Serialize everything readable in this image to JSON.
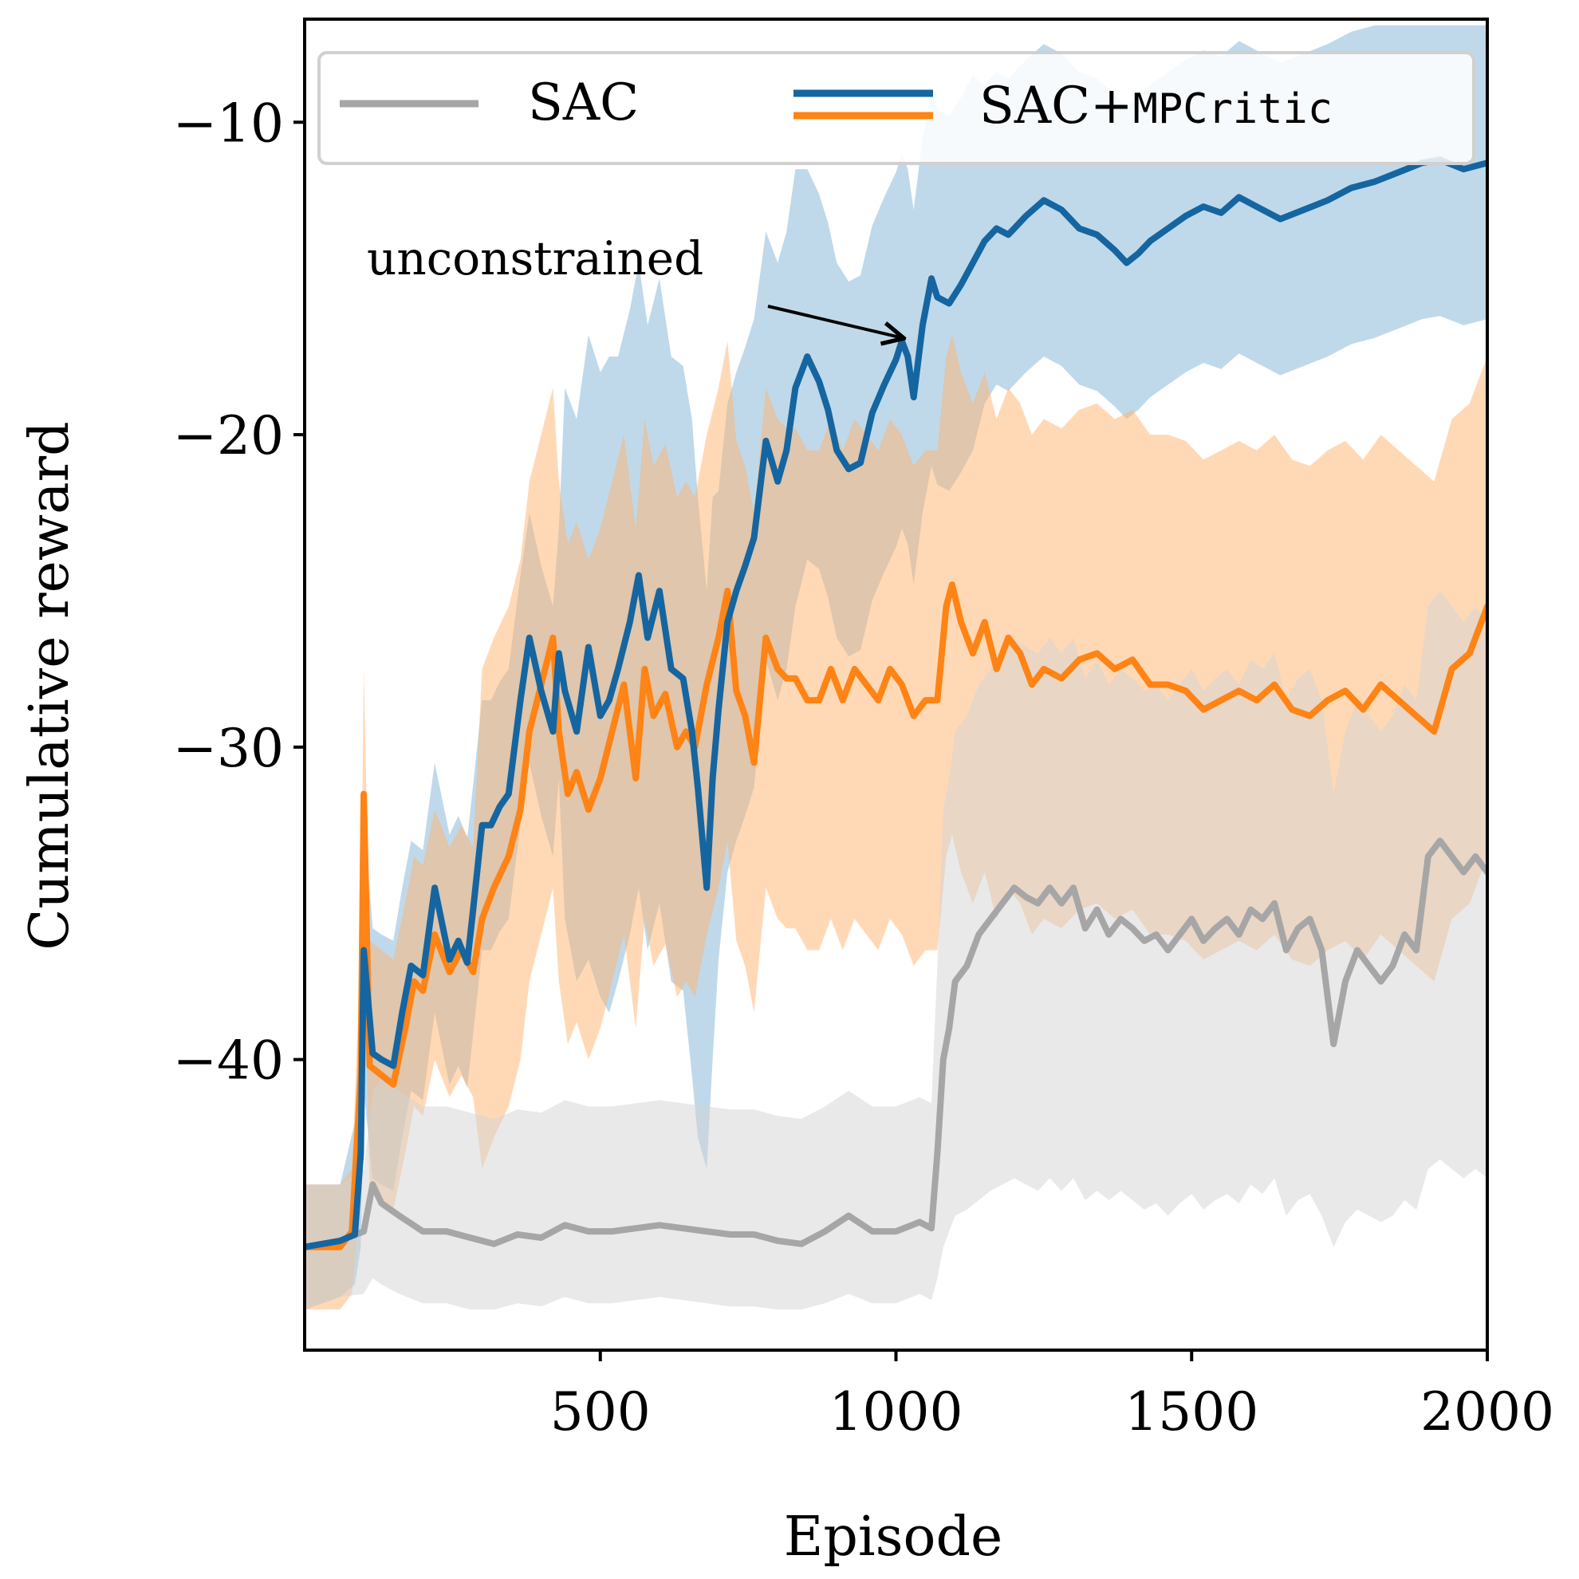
{
  "chart_data": {
    "type": "line",
    "title": "",
    "xlabel": "Episode",
    "ylabel": "Cumulative reward",
    "xlim": [
      0,
      2000
    ],
    "ylim": [
      -49.3,
      -6.7
    ],
    "xticks": [
      500,
      1000,
      1500,
      2000
    ],
    "xtick_labels": [
      "500",
      "1000",
      "1500",
      "2000"
    ],
    "yticks": [
      -10,
      -20,
      -30,
      -40
    ],
    "ytick_labels": [
      "−10",
      "−20",
      "−30",
      "−40"
    ],
    "grid": false,
    "legend": {
      "placement": "top",
      "entries": [
        {
          "label": "SAC",
          "colors": [
            "#a6a6a6"
          ]
        },
        {
          "label_prefix": "SAC+",
          "label_mono": "MPCritic",
          "colors": [
            "#1565a0",
            "#ff8315"
          ]
        }
      ]
    },
    "annotation": {
      "text": "unconstrained",
      "points_to": [
        1010,
        -16.9
      ],
      "text_at": [
        450,
        -17.2
      ]
    },
    "series": [
      {
        "name": "SAC+MPCritic unconstrained",
        "color": "#1565a0",
        "band_color": "#7fb4d6",
        "x": [
          0,
          60,
          85,
          95,
          100,
          115,
          130,
          150,
          165,
          180,
          200,
          220,
          245,
          260,
          275,
          285,
          300,
          315,
          330,
          345,
          365,
          380,
          400,
          420,
          430,
          440,
          460,
          480,
          500,
          515,
          530,
          550,
          565,
          580,
          600,
          620,
          640,
          655,
          665,
          680,
          690,
          700,
          715,
          730,
          745,
          760,
          780,
          800,
          815,
          830,
          850,
          870,
          885,
          900,
          920,
          940,
          960,
          980,
          1000,
          1010,
          1020,
          1030,
          1045,
          1060,
          1070,
          1090,
          1110,
          1130,
          1150,
          1170,
          1190,
          1220,
          1250,
          1280,
          1310,
          1340,
          1370,
          1390,
          1410,
          1430,
          1460,
          1490,
          1520,
          1550,
          1580,
          1610,
          1650,
          1690,
          1730,
          1770,
          1810,
          1850,
          1890,
          1920,
          1960,
          2000
        ],
        "y": [
          -46.0,
          -45.8,
          -45.6,
          -43.0,
          -36.5,
          -39.8,
          -40.0,
          -40.2,
          -38.5,
          -37.0,
          -37.3,
          -34.5,
          -36.8,
          -36.2,
          -36.9,
          -35.2,
          -32.5,
          -32.5,
          -31.9,
          -31.5,
          -28.5,
          -26.5,
          -28.2,
          -29.5,
          -27.0,
          -28.2,
          -29.5,
          -26.8,
          -29.0,
          -28.5,
          -27.5,
          -26.0,
          -24.5,
          -26.5,
          -25.0,
          -27.5,
          -27.8,
          -29.5,
          -31.3,
          -34.5,
          -31.0,
          -28.8,
          -26.0,
          -25.0,
          -24.2,
          -23.3,
          -20.2,
          -21.5,
          -20.5,
          -18.5,
          -17.5,
          -18.3,
          -19.2,
          -20.5,
          -21.1,
          -20.9,
          -19.3,
          -18.4,
          -17.6,
          -17.0,
          -17.5,
          -18.8,
          -16.5,
          -15.0,
          -15.6,
          -15.8,
          -15.2,
          -14.5,
          -13.8,
          -13.4,
          -13.6,
          -13.0,
          -12.5,
          -12.8,
          -13.4,
          -13.6,
          -14.1,
          -14.5,
          -14.2,
          -13.8,
          -13.4,
          -13.0,
          -12.7,
          -12.9,
          -12.4,
          -12.7,
          -13.1,
          -12.8,
          -12.5,
          -12.1,
          -11.9,
          -11.6,
          -11.3,
          -11.2,
          -11.5,
          -11.3
        ],
        "upper": [
          -44.0,
          -44.0,
          -42.0,
          -38.0,
          -32.0,
          -35.8,
          -36.0,
          -36.2,
          -34.5,
          -33.0,
          -33.3,
          -30.5,
          -32.8,
          -32.2,
          -32.9,
          -31.2,
          -28.5,
          -28.5,
          -27.9,
          -27.5,
          -24.5,
          -22.5,
          -24.2,
          -25.5,
          -23.0,
          -18.5,
          -19.5,
          -16.8,
          -18.0,
          -17.5,
          -17.5,
          -16.0,
          -14.5,
          -16.5,
          -15.0,
          -17.5,
          -17.8,
          -19.5,
          -22.0,
          -25.0,
          -22.0,
          -21.8,
          -19.0,
          -18.0,
          -17.2,
          -16.3,
          -13.5,
          -14.5,
          -13.5,
          -11.5,
          -11.5,
          -12.3,
          -13.2,
          -14.5,
          -15.1,
          -14.9,
          -13.3,
          -12.4,
          -11.6,
          -11.0,
          -11.5,
          -12.8,
          -10.5,
          -9.0,
          -9.6,
          -9.8,
          -9.2,
          -8.5,
          -8.8,
          -8.4,
          -8.6,
          -8.0,
          -7.5,
          -7.8,
          -8.4,
          -8.6,
          -9.1,
          -9.5,
          -9.2,
          -8.8,
          -8.4,
          -8.0,
          -7.7,
          -7.9,
          -7.4,
          -7.7,
          -8.1,
          -7.8,
          -7.5,
          -7.1,
          -6.9,
          -6.9,
          -6.9,
          -6.9,
          -6.9,
          -6.9
        ],
        "lower": [
          -48.0,
          -47.6,
          -47.2,
          -46.0,
          -41.0,
          -43.8,
          -44.0,
          -44.2,
          -42.5,
          -41.0,
          -41.3,
          -38.5,
          -40.8,
          -40.2,
          -40.9,
          -39.2,
          -36.5,
          -36.5,
          -35.9,
          -35.5,
          -32.5,
          -30.5,
          -32.2,
          -33.5,
          -31.0,
          -35.5,
          -37.5,
          -36.8,
          -38.0,
          -38.5,
          -37.5,
          -36.0,
          -34.5,
          -36.5,
          -35.0,
          -37.5,
          -37.8,
          -40.5,
          -42.5,
          -43.5,
          -40.0,
          -36.8,
          -34.0,
          -33.0,
          -32.2,
          -31.3,
          -27.2,
          -28.5,
          -27.5,
          -25.5,
          -24.0,
          -24.3,
          -25.2,
          -26.5,
          -27.1,
          -26.9,
          -25.3,
          -24.4,
          -23.6,
          -23.0,
          -23.5,
          -24.8,
          -22.5,
          -21.0,
          -21.6,
          -21.8,
          -21.2,
          -20.5,
          -19.0,
          -18.4,
          -18.6,
          -18.0,
          -17.5,
          -17.8,
          -18.4,
          -18.6,
          -19.1,
          -19.5,
          -19.2,
          -18.8,
          -18.4,
          -18.0,
          -17.7,
          -17.9,
          -17.4,
          -17.7,
          -18.1,
          -17.8,
          -17.5,
          -17.1,
          -16.9,
          -16.6,
          -16.3,
          -16.2,
          -16.5,
          -16.3
        ]
      },
      {
        "name": "SAC+MPCritic",
        "color": "#ff8315",
        "band_color": "#ffb46e",
        "x": [
          0,
          60,
          80,
          95,
          100,
          110,
          130,
          150,
          170,
          185,
          200,
          220,
          245,
          265,
          285,
          300,
          320,
          345,
          365,
          380,
          400,
          420,
          430,
          445,
          460,
          480,
          500,
          520,
          540,
          560,
          575,
          590,
          610,
          630,
          645,
          660,
          680,
          700,
          715,
          730,
          745,
          760,
          780,
          800,
          815,
          830,
          850,
          870,
          890,
          910,
          930,
          950,
          970,
          990,
          1010,
          1030,
          1050,
          1070,
          1085,
          1095,
          1110,
          1130,
          1150,
          1170,
          1190,
          1210,
          1230,
          1250,
          1280,
          1310,
          1340,
          1370,
          1400,
          1430,
          1460,
          1490,
          1520,
          1550,
          1580,
          1610,
          1640,
          1670,
          1700,
          1730,
          1760,
          1790,
          1820,
          1850,
          1880,
          1910,
          1940,
          1970,
          2000
        ],
        "y": [
          -46.0,
          -46.0,
          -45.5,
          -40.5,
          -31.5,
          -40.2,
          -40.5,
          -40.8,
          -39.0,
          -37.5,
          -37.8,
          -36.0,
          -37.2,
          -36.5,
          -37.2,
          -35.5,
          -34.5,
          -33.5,
          -32.0,
          -29.5,
          -28.0,
          -26.5,
          -29.5,
          -31.5,
          -30.8,
          -32.0,
          -31.0,
          -29.5,
          -28.0,
          -31.0,
          -27.5,
          -29.0,
          -28.3,
          -30.0,
          -29.5,
          -30.0,
          -28.0,
          -26.5,
          -25.0,
          -28.2,
          -29.0,
          -30.5,
          -26.5,
          -27.5,
          -27.8,
          -27.8,
          -28.5,
          -28.5,
          -27.5,
          -28.5,
          -27.5,
          -28.0,
          -28.5,
          -27.5,
          -28.0,
          -29.0,
          -28.5,
          -28.5,
          -25.5,
          -24.8,
          -26.0,
          -27.0,
          -26.0,
          -27.5,
          -26.5,
          -27.0,
          -28.0,
          -27.5,
          -27.8,
          -27.2,
          -27.0,
          -27.5,
          -27.2,
          -28.0,
          -28.0,
          -28.2,
          -28.8,
          -28.5,
          -28.2,
          -28.5,
          -28.0,
          -28.8,
          -29.0,
          -28.5,
          -28.2,
          -28.8,
          -28.0,
          -28.5,
          -29.0,
          -29.5,
          -27.5,
          -27.0,
          -25.5
        ],
        "upper": [
          -44.0,
          -44.0,
          -43.5,
          -36.5,
          -27.5,
          -36.2,
          -36.5,
          -36.8,
          -35.0,
          -33.5,
          -33.8,
          -32.0,
          -33.2,
          -32.5,
          -33.2,
          -27.5,
          -26.5,
          -25.5,
          -24.0,
          -21.5,
          -20.0,
          -18.5,
          -21.5,
          -23.5,
          -22.8,
          -24.0,
          -23.0,
          -21.5,
          -20.0,
          -23.0,
          -19.5,
          -21.0,
          -20.3,
          -22.0,
          -21.5,
          -22.0,
          -20.0,
          -18.5,
          -17.0,
          -20.2,
          -21.0,
          -22.5,
          -18.5,
          -19.5,
          -19.8,
          -19.8,
          -20.5,
          -20.5,
          -19.5,
          -20.5,
          -19.5,
          -20.0,
          -20.5,
          -19.5,
          -20.0,
          -21.0,
          -20.5,
          -20.5,
          -17.5,
          -16.8,
          -18.0,
          -19.0,
          -18.0,
          -19.5,
          -18.5,
          -19.0,
          -20.0,
          -19.5,
          -19.8,
          -19.2,
          -19.0,
          -19.5,
          -19.2,
          -20.0,
          -20.0,
          -20.2,
          -20.8,
          -20.5,
          -20.2,
          -20.5,
          -20.0,
          -20.8,
          -21.0,
          -20.5,
          -20.2,
          -20.8,
          -20.0,
          -20.5,
          -21.0,
          -21.5,
          -19.5,
          -19.0,
          -17.5
        ],
        "lower": [
          -48.0,
          -48.0,
          -47.5,
          -44.5,
          -35.5,
          -44.2,
          -44.5,
          -44.8,
          -43.0,
          -41.5,
          -41.8,
          -40.0,
          -41.2,
          -40.5,
          -41.2,
          -43.5,
          -42.5,
          -41.5,
          -40.0,
          -37.5,
          -36.0,
          -34.5,
          -37.5,
          -39.5,
          -38.8,
          -40.0,
          -39.0,
          -37.5,
          -36.0,
          -39.0,
          -35.5,
          -37.0,
          -36.3,
          -38.0,
          -37.5,
          -38.0,
          -36.0,
          -34.5,
          -33.0,
          -36.2,
          -37.0,
          -38.5,
          -34.5,
          -35.5,
          -35.8,
          -35.8,
          -36.5,
          -36.5,
          -35.5,
          -36.5,
          -35.5,
          -36.0,
          -36.5,
          -35.5,
          -36.0,
          -37.0,
          -36.5,
          -36.5,
          -33.5,
          -32.8,
          -34.0,
          -35.0,
          -34.0,
          -35.5,
          -34.5,
          -35.0,
          -36.0,
          -35.5,
          -35.8,
          -35.2,
          -35.0,
          -35.5,
          -35.2,
          -36.0,
          -36.0,
          -36.2,
          -36.8,
          -36.5,
          -36.2,
          -36.5,
          -36.0,
          -36.8,
          -37.0,
          -36.5,
          -36.2,
          -36.8,
          -36.0,
          -36.5,
          -37.0,
          -37.5,
          -35.5,
          -35.0,
          -33.5
        ]
      },
      {
        "name": "SAC",
        "color": "#a6a6a6",
        "band_color": "#d4d4d4",
        "x": [
          0,
          60,
          100,
          115,
          130,
          160,
          200,
          240,
          280,
          320,
          360,
          400,
          440,
          480,
          520,
          560,
          600,
          640,
          680,
          720,
          760,
          800,
          840,
          880,
          920,
          960,
          1000,
          1040,
          1060,
          1070,
          1080,
          1090,
          1100,
          1120,
          1140,
          1160,
          1180,
          1200,
          1220,
          1240,
          1260,
          1280,
          1300,
          1320,
          1340,
          1360,
          1380,
          1400,
          1420,
          1440,
          1460,
          1480,
          1500,
          1520,
          1540,
          1560,
          1580,
          1600,
          1620,
          1640,
          1660,
          1680,
          1700,
          1720,
          1740,
          1760,
          1780,
          1800,
          1820,
          1840,
          1860,
          1880,
          1900,
          1920,
          1940,
          1960,
          1980,
          2000
        ],
        "y": [
          -46.0,
          -45.8,
          -45.5,
          -44.0,
          -44.6,
          -45.0,
          -45.5,
          -45.5,
          -45.7,
          -45.9,
          -45.6,
          -45.7,
          -45.3,
          -45.5,
          -45.5,
          -45.4,
          -45.3,
          -45.4,
          -45.5,
          -45.6,
          -45.6,
          -45.8,
          -45.9,
          -45.5,
          -45.0,
          -45.5,
          -45.5,
          -45.2,
          -45.4,
          -43.0,
          -40.0,
          -39.0,
          -37.5,
          -37.0,
          -36.0,
          -35.5,
          -35.0,
          -34.5,
          -34.8,
          -35.0,
          -34.5,
          -35.0,
          -34.5,
          -35.8,
          -35.2,
          -36.0,
          -35.5,
          -35.8,
          -36.2,
          -36.0,
          -36.5,
          -36.0,
          -35.5,
          -36.2,
          -35.8,
          -35.5,
          -36.0,
          -35.2,
          -35.5,
          -35.0,
          -36.5,
          -35.8,
          -35.5,
          -36.5,
          -39.5,
          -37.5,
          -36.5,
          -37.0,
          -37.5,
          -37.0,
          -36.0,
          -36.5,
          -33.5,
          -33.0,
          -33.5,
          -34.0,
          -33.5,
          -34.0
        ],
        "upper": [
          -44.0,
          -44.0,
          -43.5,
          -41.0,
          -40.6,
          -41.0,
          -41.5,
          -41.5,
          -41.7,
          -41.9,
          -41.6,
          -41.7,
          -41.3,
          -41.5,
          -41.5,
          -41.4,
          -41.3,
          -41.4,
          -41.5,
          -41.6,
          -41.6,
          -41.8,
          -41.9,
          -41.5,
          -41.0,
          -41.5,
          -41.5,
          -41.2,
          -41.4,
          -37.0,
          -32.0,
          -31.0,
          -29.5,
          -29.0,
          -28.0,
          -27.5,
          -27.0,
          -26.5,
          -26.8,
          -27.0,
          -26.5,
          -27.0,
          -26.5,
          -27.8,
          -27.2,
          -28.0,
          -27.5,
          -27.8,
          -28.2,
          -28.0,
          -28.5,
          -28.0,
          -27.5,
          -28.2,
          -27.8,
          -27.5,
          -28.0,
          -27.2,
          -27.5,
          -27.0,
          -28.5,
          -27.8,
          -27.5,
          -28.5,
          -31.5,
          -29.5,
          -28.5,
          -29.0,
          -29.5,
          -29.0,
          -28.0,
          -28.5,
          -25.5,
          -25.0,
          -25.5,
          -26.0,
          -25.5,
          -26.0
        ],
        "lower": [
          -48.0,
          -47.6,
          -47.5,
          -47.0,
          -47.2,
          -47.5,
          -47.8,
          -47.8,
          -48.0,
          -48.0,
          -47.8,
          -47.9,
          -47.6,
          -47.8,
          -47.8,
          -47.7,
          -47.6,
          -47.7,
          -47.8,
          -47.9,
          -47.9,
          -48.0,
          -48.0,
          -47.8,
          -47.5,
          -47.8,
          -47.8,
          -47.5,
          -47.7,
          -47.0,
          -46.0,
          -45.5,
          -45.0,
          -44.8,
          -44.5,
          -44.2,
          -44.0,
          -43.8,
          -44.0,
          -44.2,
          -43.8,
          -44.2,
          -43.8,
          -44.5,
          -44.2,
          -44.5,
          -44.2,
          -44.5,
          -44.8,
          -44.6,
          -45.0,
          -44.6,
          -44.3,
          -44.8,
          -44.5,
          -44.3,
          -44.6,
          -44.0,
          -44.3,
          -43.8,
          -45.0,
          -44.5,
          -44.3,
          -45.0,
          -46.0,
          -45.2,
          -44.8,
          -45.0,
          -45.2,
          -45.0,
          -44.5,
          -44.8,
          -43.5,
          -43.2,
          -43.5,
          -43.8,
          -43.5,
          -43.8
        ]
      }
    ]
  }
}
